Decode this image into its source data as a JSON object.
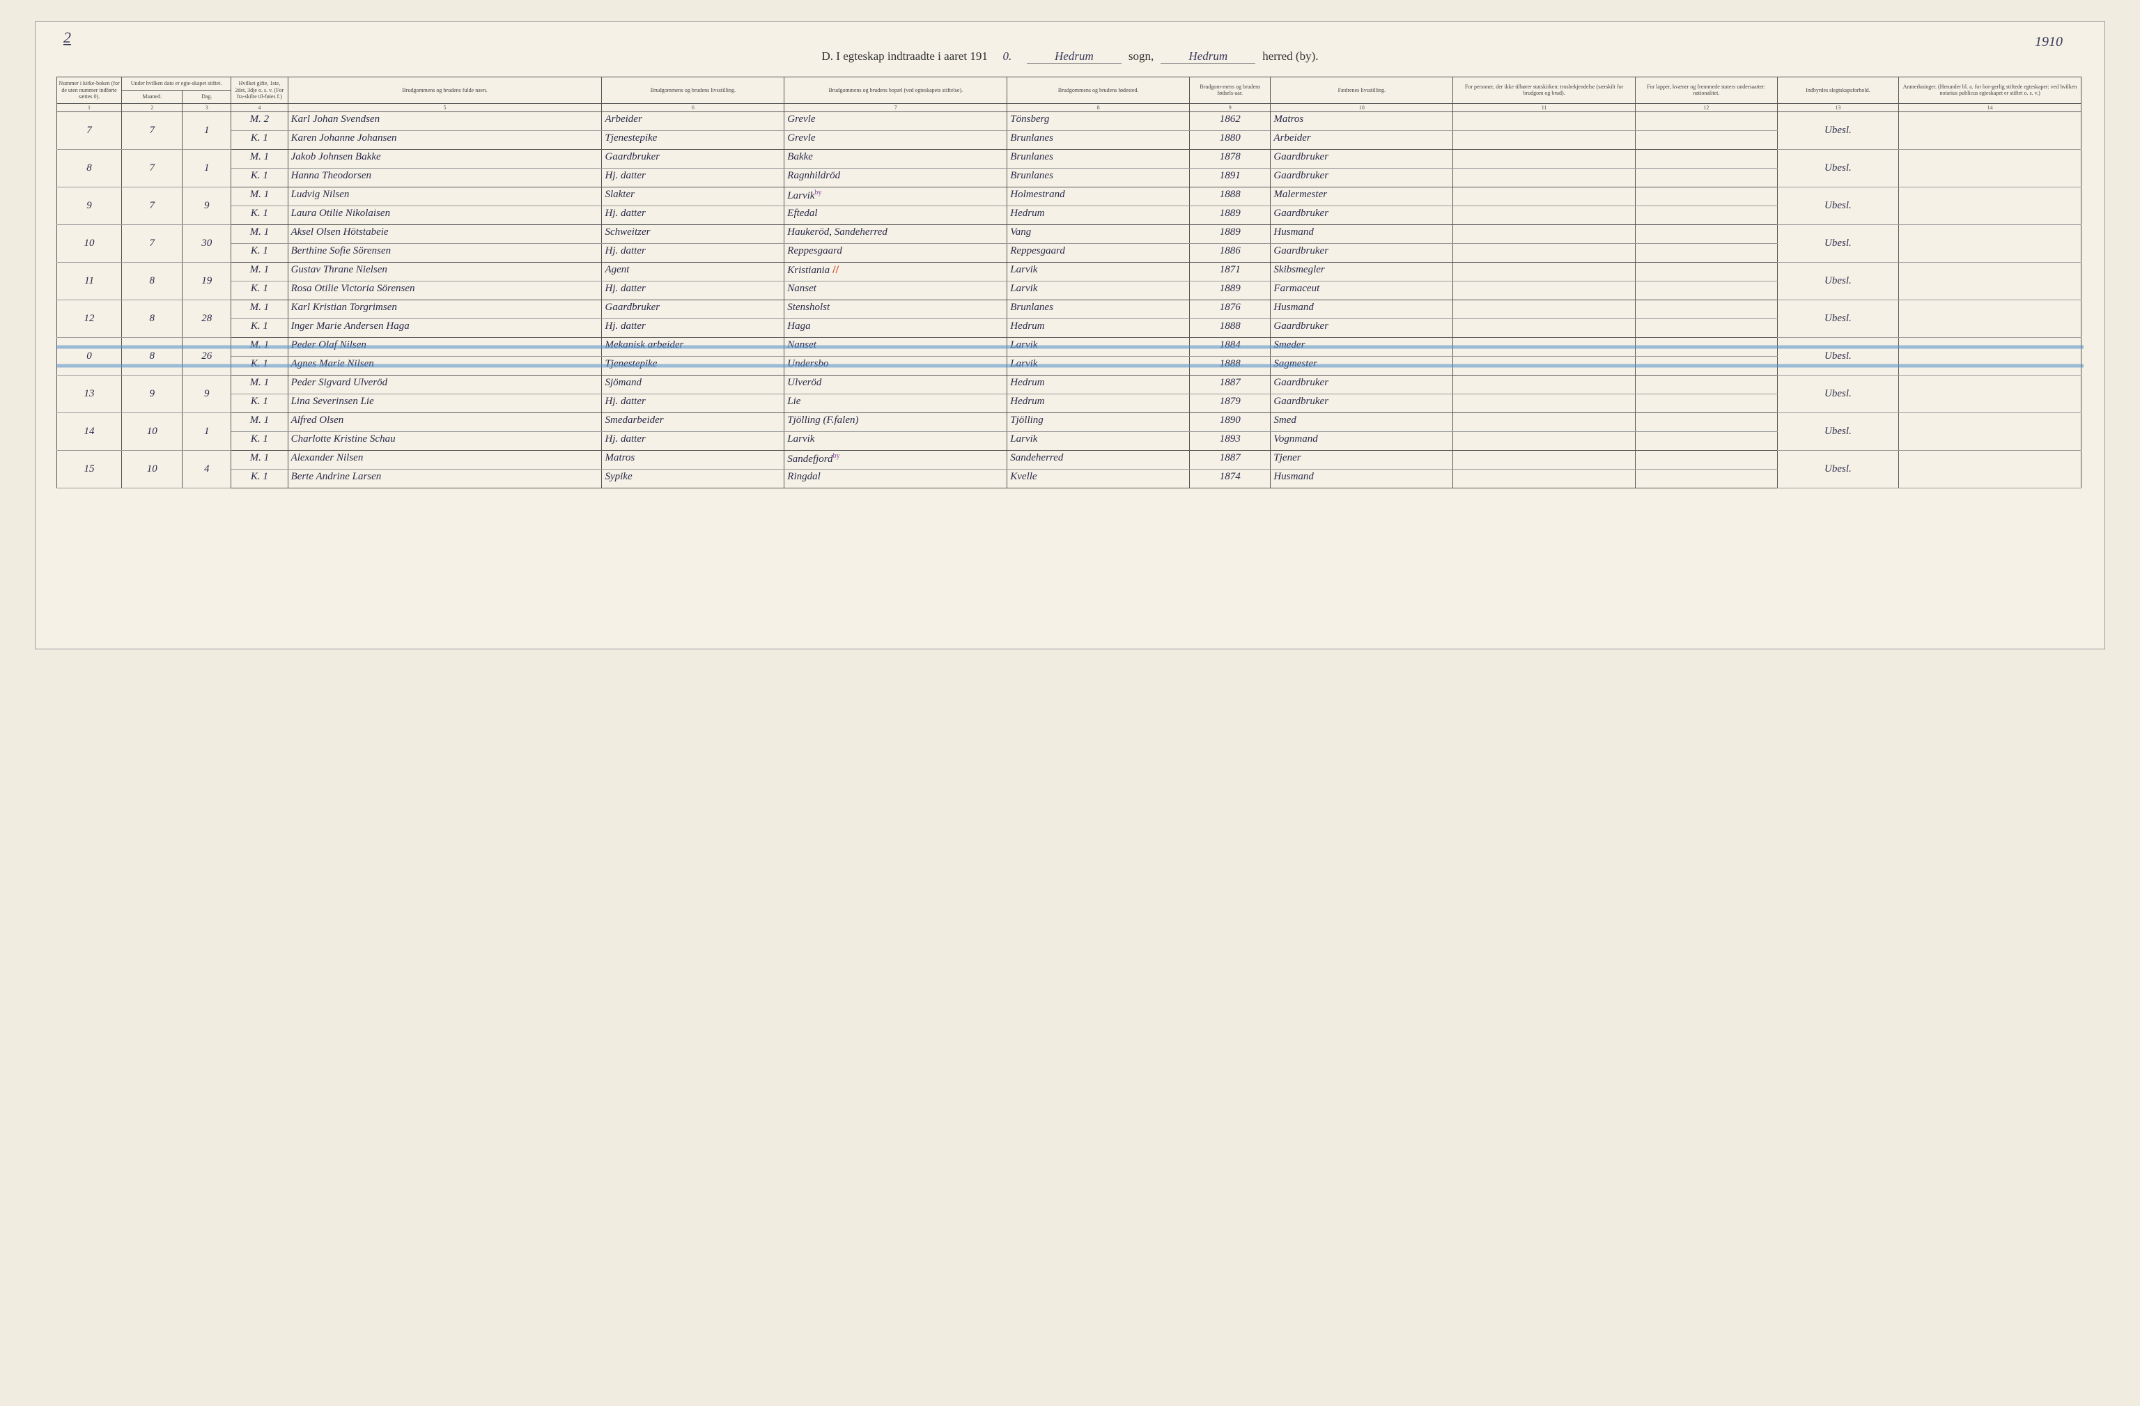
{
  "page": {
    "top_left_number": "2",
    "top_right_number": "1910",
    "heading_prefix": "D.  I egteskap indtraadte i aaret 191",
    "heading_year_suffix": "0.",
    "sogn_value": "Hedrum",
    "sogn_label": "sogn,",
    "herred_value": "Hedrum",
    "herred_label": "herred (by)."
  },
  "columns": {
    "headers": [
      "Nummer i kirke-boken (for de uten nummer indførte sættes 0).",
      "Under hvilken dato er egte-skapet stiftet.",
      "",
      "Hvilket gifte, 1ste, 2det, 3dje o. s. v. (For fra-skilte til-føies f.)",
      "Brudgommens og brudens fulde navn.",
      "Brudgommens og brudens livsstilling.",
      "Brudgommens og brudens bopæl (ved egteskapets stiftelse).",
      "Brudgommens og brudens fødested.",
      "Brudgom-mens og brudens fødsels-aar.",
      "Fædrenes livsstilling.",
      "For personer, der ikke tilhører statskirken: trosbekjendelse (særskilt for brudgom og brud).",
      "For lapper, kvæner og fremmede staters undersaatter: nationalitet.",
      "Indbyrdes slegtskapsforhold.",
      "Anmerkninger. (Herunder bl. a. for bor-gerlig stiftede egteskaper: ved hvilken notarius publicus egteskapet er stiftet o. s. v.)"
    ],
    "sub_month": "Maaned.",
    "sub_day": "Dag.",
    "numbers": [
      "1",
      "2",
      "3",
      "4",
      "5",
      "6",
      "7",
      "8",
      "9",
      "10",
      "11",
      "12",
      "13",
      "14"
    ]
  },
  "mk_labels": {
    "m": "M.",
    "k": "K."
  },
  "records": [
    {
      "no": "7",
      "month": "7",
      "day": "1",
      "rel": "Ubesl.",
      "m": {
        "gifte": "2",
        "name": "Karl Johan Svendsen",
        "occ": "Arbeider",
        "res": "Grevle",
        "birthpl": "Tönsberg",
        "year": "1862",
        "father": "Matros"
      },
      "k": {
        "gifte": "1",
        "name": "Karen Johanne Johansen",
        "occ": "Tjenestepike",
        "res": "Grevle",
        "birthpl": "Brunlanes",
        "year": "1880",
        "father": "Arbeider"
      }
    },
    {
      "no": "8",
      "month": "7",
      "day": "1",
      "rel": "Ubesl.",
      "m": {
        "gifte": "1",
        "name": "Jakob Johnsen Bakke",
        "occ": "Gaardbruker",
        "res": "Bakke",
        "birthpl": "Brunlanes",
        "year": "1878",
        "father": "Gaardbruker"
      },
      "k": {
        "gifte": "1",
        "name": "Hanna Theodorsen",
        "occ": "Hj. datter",
        "res": "Ragnhildröd",
        "birthpl": "Brunlanes",
        "year": "1891",
        "father": "Gaardbruker"
      }
    },
    {
      "no": "9",
      "month": "7",
      "day": "9",
      "rel": "Ubesl.",
      "m": {
        "gifte": "1",
        "name": "Ludvig Nilsen",
        "occ": "Slakter",
        "res": "Larvik",
        "res_mark": "by",
        "birthpl": "Holmestrand",
        "year": "1888",
        "father": "Malermester"
      },
      "k": {
        "gifte": "1",
        "name": "Laura Otilie Nikolaisen",
        "occ": "Hj. datter",
        "res": "Eftedal",
        "birthpl": "Hedrum",
        "year": "1889",
        "father": "Gaardbruker"
      }
    },
    {
      "no": "10",
      "month": "7",
      "day": "30",
      "rel": "Ubesl.",
      "m": {
        "gifte": "1",
        "name": "Aksel Olsen Hötstabeie",
        "occ": "Schweitzer",
        "res": "Haukeröd, Sandeherred",
        "birthpl": "Vang",
        "year": "1889",
        "father": "Husmand"
      },
      "k": {
        "gifte": "1",
        "name": "Berthine Sofie Sörensen",
        "occ": "Hj. datter",
        "res": "Reppesgaard",
        "birthpl": "Reppesgaard",
        "year": "1886",
        "father": "Gaardbruker"
      }
    },
    {
      "no": "11",
      "month": "8",
      "day": "19",
      "rel": "Ubesl.",
      "m": {
        "gifte": "1",
        "name": "Gustav Thrane Nielsen",
        "occ": "Agent",
        "res": "Kristiania",
        "res_red": true,
        "birthpl": "Larvik",
        "year": "1871",
        "father": "Skibsmegler"
      },
      "k": {
        "gifte": "1",
        "name": "Rosa Otilie Victoria Sörensen",
        "occ": "Hj. datter",
        "res": "Nanset",
        "birthpl": "Larvik",
        "year": "1889",
        "father": "Farmaceut"
      }
    },
    {
      "no": "12",
      "month": "8",
      "day": "28",
      "rel": "Ubesl.",
      "m": {
        "gifte": "1",
        "name": "Karl Kristian Torgrimsen",
        "occ": "Gaardbruker",
        "res": "Stensholst",
        "birthpl": "Brunlanes",
        "year": "1876",
        "father": "Husmand"
      },
      "k": {
        "gifte": "1",
        "name": "Inger Marie Andersen Haga",
        "occ": "Hj. datter",
        "res": "Haga",
        "birthpl": "Hedrum",
        "year": "1888",
        "father": "Gaardbruker"
      }
    },
    {
      "no": "0",
      "month": "8",
      "day": "26",
      "rel": "Ubesl.",
      "struck": true,
      "m": {
        "gifte": "1",
        "name": "Peder Olaf Nilsen",
        "occ": "Mekanisk arbeider",
        "res": "Nanset",
        "birthpl": "Larvik",
        "year": "1884",
        "father": "Smeder"
      },
      "k": {
        "gifte": "1",
        "name": "Agnes Marie Nilsen",
        "occ": "Tjenestepike",
        "res": "Undersbo",
        "birthpl": "Larvik",
        "year": "1888",
        "father": "Sagmester"
      }
    },
    {
      "no": "13",
      "month": "9",
      "day": "9",
      "rel": "Ubesl.",
      "m": {
        "gifte": "1",
        "name": "Peder Sigvard Ulveröd",
        "occ": "Sjömand",
        "res": "Ulveröd",
        "birthpl": "Hedrum",
        "year": "1887",
        "father": "Gaardbruker"
      },
      "k": {
        "gifte": "1",
        "name": "Lina Severinsen Lie",
        "occ": "Hj. datter",
        "res": "Lie",
        "birthpl": "Hedrum",
        "year": "1879",
        "father": "Gaardbruker"
      }
    },
    {
      "no": "14",
      "month": "10",
      "day": "1",
      "rel": "Ubesl.",
      "m": {
        "gifte": "1",
        "name": "Alfred Olsen",
        "occ": "Smedarbeider",
        "res": "Tjölling (F.falen)",
        "birthpl": "Tjölling",
        "year": "1890",
        "father": "Smed"
      },
      "k": {
        "gifte": "1",
        "name": "Charlotte Kristine Schau",
        "occ": "Hj. datter",
        "res": "Larvik",
        "birthpl": "Larvik",
        "year": "1893",
        "father": "Vognmand"
      }
    },
    {
      "no": "15",
      "month": "10",
      "day": "4",
      "rel": "Ubesl.",
      "m": {
        "gifte": "1",
        "name": "Alexander Nilsen",
        "occ": "Matros",
        "res": "Sandefjord",
        "res_mark": "by",
        "birthpl": "Sandeherred",
        "year": "1887",
        "father": "Tjener"
      },
      "k": {
        "gifte": "1",
        "name": "Berte Andrine Larsen",
        "occ": "Sypike",
        "res": "Ringdal",
        "birthpl": "Kvelle",
        "year": "1874",
        "father": "Husmand"
      }
    }
  ],
  "colors": {
    "paper": "#f5f1e6",
    "ink_print": "#444444",
    "ink_script": "#2a2a4a",
    "blue_strike": "#5a8cc8",
    "red_mark": "#d04020",
    "violet_mark": "#8a4aa0",
    "rule": "#555555"
  },
  "typography": {
    "header_font_pt": 8,
    "body_script_pt": 15,
    "heading_pt": 17
  }
}
